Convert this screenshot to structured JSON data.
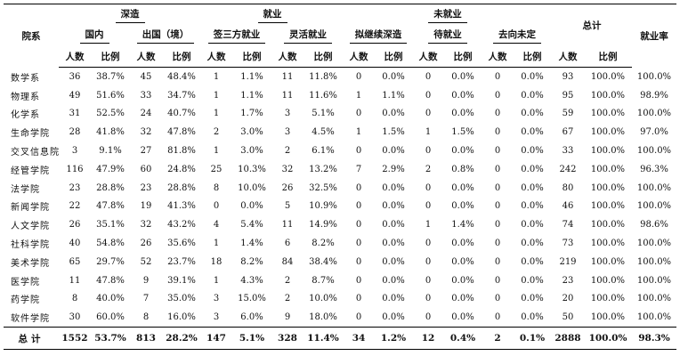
{
  "header": {
    "col_department": "院系",
    "group_study": "深造",
    "group_employed": "就业",
    "group_unemployed": "未就业",
    "col_total": "总计",
    "col_rate": "就业率",
    "sub_domestic": "国内",
    "sub_abroad": "出国（境）",
    "sub_contract": "签三方就业",
    "sub_flexible": "灵活就业",
    "sub_planning": "拟继续深造",
    "sub_waiting": "待就业",
    "sub_undecided": "去向未定",
    "count_label": "人数",
    "ratio_label": "比例"
  },
  "rows": [
    {
      "dept": "数学系",
      "c": [
        "36",
        "38.7%",
        "45",
        "48.4%",
        "1",
        "1.1%",
        "11",
        "11.8%",
        "0",
        "0.0%",
        "0",
        "0.0%",
        "0",
        "0.0%",
        "93",
        "100.0%",
        "100.0%"
      ]
    },
    {
      "dept": "物理系",
      "c": [
        "49",
        "51.6%",
        "33",
        "34.7%",
        "1",
        "1.1%",
        "11",
        "11.6%",
        "1",
        "1.1%",
        "0",
        "0.0%",
        "0",
        "0.0%",
        "95",
        "100.0%",
        "98.9%"
      ]
    },
    {
      "dept": "化学系",
      "c": [
        "31",
        "52.5%",
        "24",
        "40.7%",
        "1",
        "1.7%",
        "3",
        "5.1%",
        "0",
        "0.0%",
        "0",
        "0.0%",
        "0",
        "0.0%",
        "59",
        "100.0%",
        "100.0%"
      ]
    },
    {
      "dept": "生命学院",
      "c": [
        "28",
        "41.8%",
        "32",
        "47.8%",
        "2",
        "3.0%",
        "3",
        "4.5%",
        "1",
        "1.5%",
        "1",
        "1.5%",
        "0",
        "0.0%",
        "67",
        "100.0%",
        "97.0%"
      ]
    },
    {
      "dept": "交叉信息院",
      "c": [
        "3",
        "9.1%",
        "27",
        "81.8%",
        "1",
        "3.0%",
        "2",
        "6.1%",
        "0",
        "0.0%",
        "0",
        "0.0%",
        "0",
        "0.0%",
        "33",
        "100.0%",
        "100.0%"
      ]
    },
    {
      "dept": "经管学院",
      "c": [
        "116",
        "47.9%",
        "60",
        "24.8%",
        "25",
        "10.3%",
        "32",
        "13.2%",
        "7",
        "2.9%",
        "2",
        "0.8%",
        "0",
        "0.0%",
        "242",
        "100.0%",
        "96.3%"
      ]
    },
    {
      "dept": "法学院",
      "c": [
        "23",
        "28.8%",
        "23",
        "28.8%",
        "8",
        "10.0%",
        "26",
        "32.5%",
        "0",
        "0.0%",
        "0",
        "0.0%",
        "0",
        "0.0%",
        "80",
        "100.0%",
        "100.0%"
      ]
    },
    {
      "dept": "新闻学院",
      "c": [
        "22",
        "47.8%",
        "19",
        "41.3%",
        "0",
        "0.0%",
        "5",
        "10.9%",
        "0",
        "0.0%",
        "0",
        "0.0%",
        "0",
        "0.0%",
        "46",
        "100.0%",
        "100.0%"
      ]
    },
    {
      "dept": "人文学院",
      "c": [
        "26",
        "35.1%",
        "32",
        "43.2%",
        "4",
        "5.4%",
        "11",
        "14.9%",
        "0",
        "0.0%",
        "1",
        "1.4%",
        "0",
        "0.0%",
        "74",
        "100.0%",
        "98.6%"
      ]
    },
    {
      "dept": "社科学院",
      "c": [
        "40",
        "54.8%",
        "26",
        "35.6%",
        "1",
        "1.4%",
        "6",
        "8.2%",
        "0",
        "0.0%",
        "0",
        "0.0%",
        "0",
        "0.0%",
        "73",
        "100.0%",
        "100.0%"
      ]
    },
    {
      "dept": "美术学院",
      "c": [
        "65",
        "29.7%",
        "52",
        "23.7%",
        "18",
        "8.2%",
        "84",
        "38.4%",
        "0",
        "0.0%",
        "0",
        "0.0%",
        "0",
        "0.0%",
        "219",
        "100.0%",
        "100.0%"
      ]
    },
    {
      "dept": "医学院",
      "c": [
        "11",
        "47.8%",
        "9",
        "39.1%",
        "1",
        "4.3%",
        "2",
        "8.7%",
        "0",
        "0.0%",
        "0",
        "0.0%",
        "0",
        "0.0%",
        "23",
        "100.0%",
        "100.0%"
      ]
    },
    {
      "dept": "药学院",
      "c": [
        "8",
        "40.0%",
        "7",
        "35.0%",
        "3",
        "15.0%",
        "2",
        "10.0%",
        "0",
        "0.0%",
        "0",
        "0.0%",
        "0",
        "0.0%",
        "20",
        "100.0%",
        "100.0%"
      ]
    },
    {
      "dept": "软件学院",
      "c": [
        "30",
        "60.0%",
        "8",
        "16.0%",
        "3",
        "6.0%",
        "9",
        "18.0%",
        "0",
        "0.0%",
        "0",
        "0.0%",
        "0",
        "0.0%",
        "50",
        "100.0%",
        "100.0%"
      ]
    }
  ],
  "total": {
    "dept": "总计",
    "c": [
      "1552",
      "53.7%",
      "813",
      "28.2%",
      "147",
      "5.1%",
      "328",
      "11.4%",
      "34",
      "1.2%",
      "12",
      "0.4%",
      "2",
      "0.1%",
      "2888",
      "100.0%",
      "98.3%"
    ]
  }
}
